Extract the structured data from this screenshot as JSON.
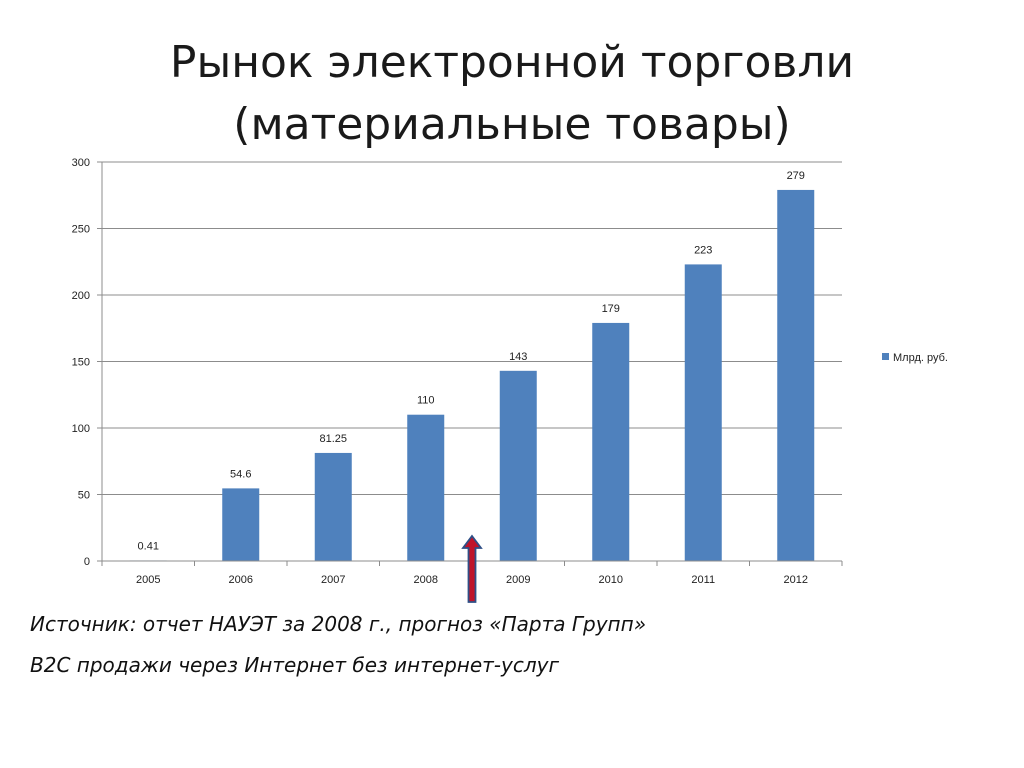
{
  "title": {
    "line1": "Рынок электронной торговли",
    "line2": "(материальные товары)"
  },
  "chart_data": {
    "type": "bar",
    "categories": [
      "2005",
      "2006",
      "2007",
      "2008",
      "2009",
      "2010",
      "2011",
      "2012"
    ],
    "series": [
      {
        "name": "Млрд. руб.",
        "values": [
          0.41,
          54.6,
          81.25,
          110,
          143,
          179,
          223,
          279
        ],
        "labels": [
          "0.41",
          "54.6",
          "81.25",
          "110",
          "143",
          "179",
          "223",
          "279"
        ],
        "color": "#4f81bd"
      }
    ],
    "yticks": [
      0,
      50,
      100,
      150,
      200,
      250,
      300
    ],
    "ylim": [
      0,
      300
    ],
    "grid": true,
    "legend_position": "right",
    "marker": {
      "type": "upward-arrow",
      "category_between": [
        "2008",
        "2009"
      ],
      "fill": "#c0142a",
      "stroke": "#2e4f86"
    }
  },
  "notes": {
    "source": "Источник: отчет НАУЭТ за 2008 г., прогноз «Парта Групп»",
    "scope": "B2C продажи через Интернет без интернет-услуг"
  }
}
